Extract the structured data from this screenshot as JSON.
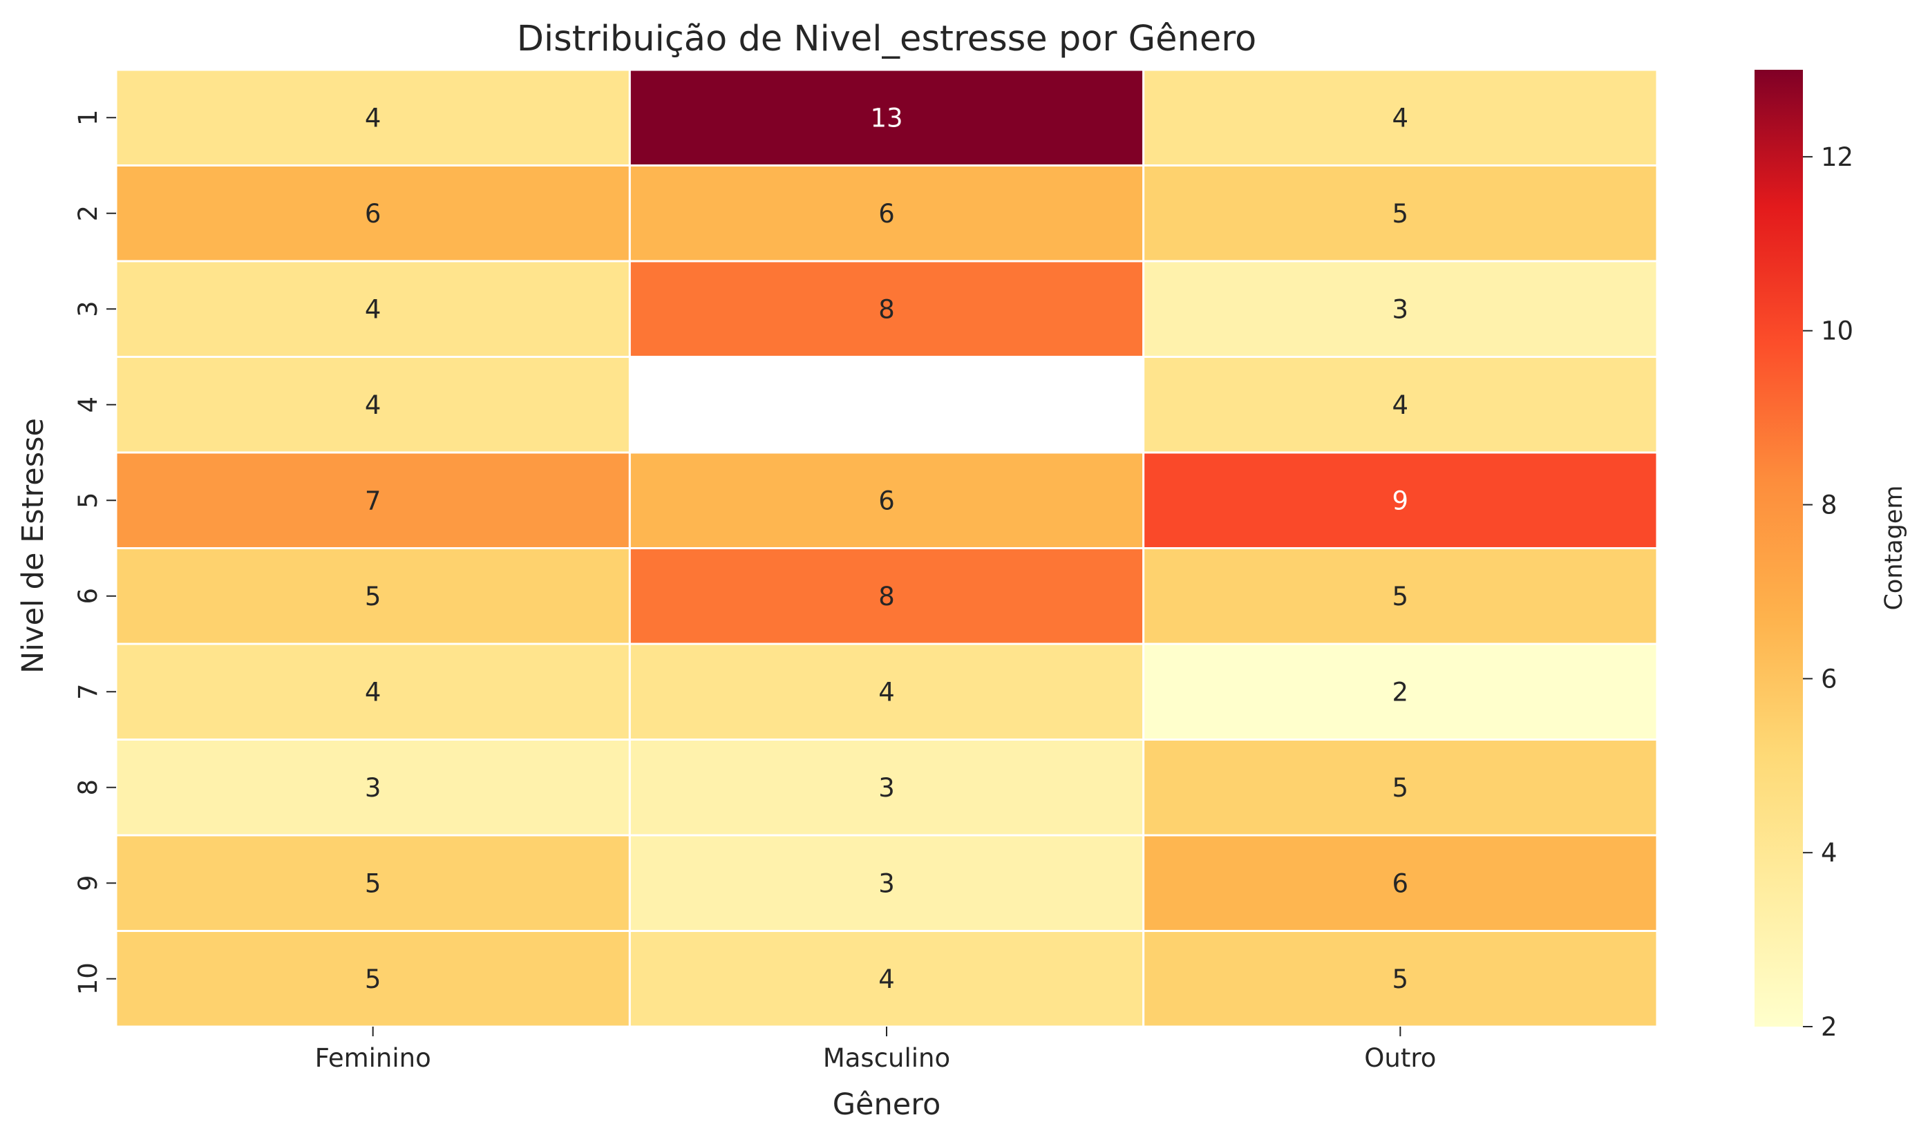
{
  "chart_data": {
    "type": "heatmap",
    "title": "Distribuição de Nivel_estresse por Gênero",
    "xlabel": "Gênero",
    "ylabel": "Nivel de Estresse",
    "x_categories": [
      "Feminino",
      "Masculino",
      "Outro"
    ],
    "y_categories": [
      "1",
      "2",
      "3",
      "4",
      "5",
      "6",
      "7",
      "8",
      "9",
      "10"
    ],
    "values": [
      [
        4,
        13,
        4
      ],
      [
        6,
        6,
        5
      ],
      [
        4,
        8,
        3
      ],
      [
        4,
        null,
        4
      ],
      [
        7,
        6,
        9
      ],
      [
        5,
        8,
        5
      ],
      [
        4,
        4,
        2
      ],
      [
        3,
        3,
        5
      ],
      [
        5,
        3,
        6
      ],
      [
        5,
        4,
        5
      ]
    ],
    "colorbar": {
      "label": "Contagem",
      "range": [
        2,
        13
      ],
      "ticks": [
        2,
        4,
        6,
        8,
        10,
        12
      ],
      "colormap": "YlOrRd"
    },
    "annotations": true,
    "cell_border_color": "#ffffff"
  }
}
